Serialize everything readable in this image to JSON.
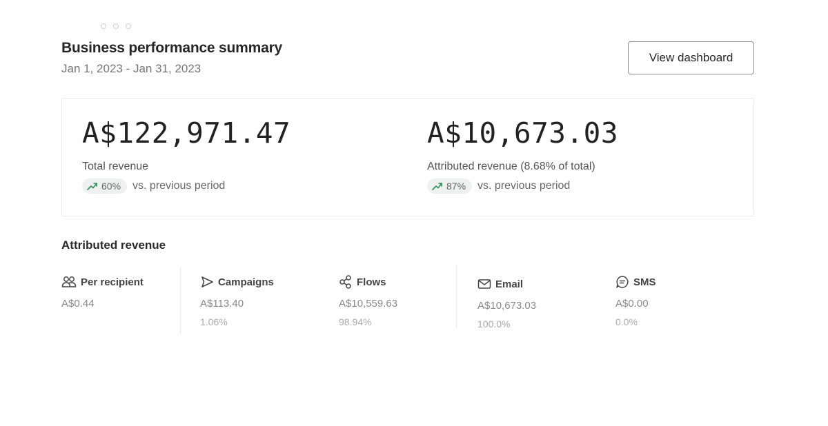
{
  "header": {
    "title": "Business performance summary",
    "date_range": "Jan 1, 2023 - Jan 31, 2023",
    "view_dashboard_label": "View dashboard"
  },
  "summary": {
    "total": {
      "value": "A$122,971.47",
      "label": "Total revenue",
      "change": "60%",
      "change_suffix": "vs. previous period",
      "trend_icon": "trend-up-icon"
    },
    "attributed": {
      "value": "A$10,673.03",
      "label": "Attributed revenue (8.68% of total)",
      "change": "87%",
      "change_suffix": "vs. previous period",
      "trend_icon": "trend-up-icon"
    }
  },
  "breakdown": {
    "title": "Attributed revenue",
    "items": [
      {
        "label": "Per recipient",
        "icon": "people-icon",
        "amount": "A$0.44",
        "pct": ""
      },
      {
        "label": "Campaigns",
        "icon": "send-icon",
        "amount": "A$113.40",
        "pct": "1.06%"
      },
      {
        "label": "Flows",
        "icon": "flows-icon",
        "amount": "A$10,559.63",
        "pct": "98.94%"
      },
      {
        "label": "Email",
        "icon": "email-icon",
        "amount": "A$10,673.03",
        "pct": "100.0%"
      },
      {
        "label": "SMS",
        "icon": "sms-icon",
        "amount": "A$0.00",
        "pct": "0.0%"
      }
    ]
  },
  "colors": {
    "trend_up": "#2e8b57",
    "pill_bg": "#eef1ef",
    "border": "#ececec"
  }
}
